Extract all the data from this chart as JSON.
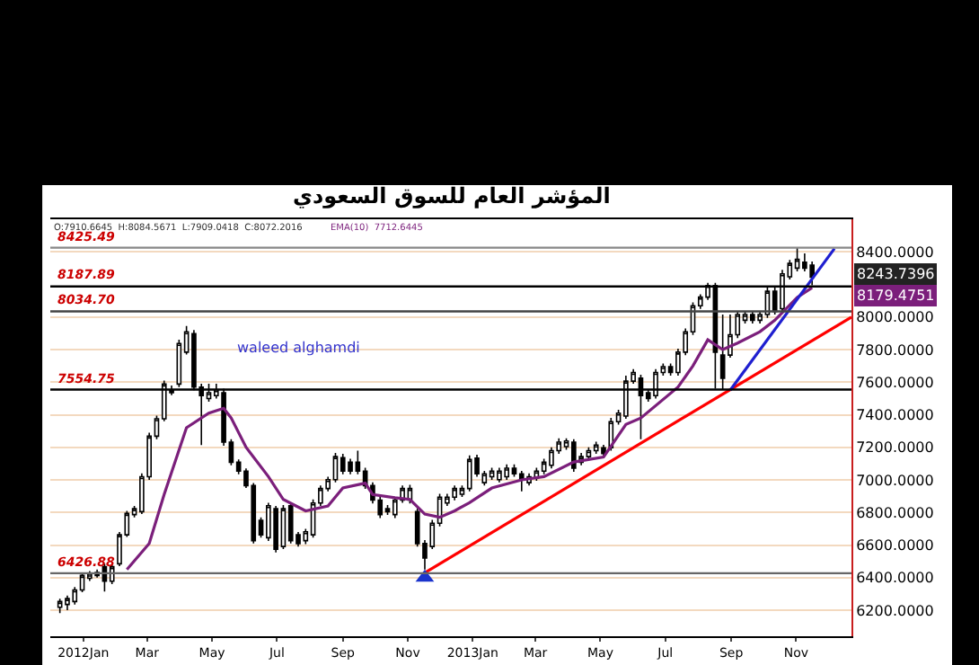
{
  "chart_data": {
    "type": "candlestick",
    "title": "المؤشر العام للسوق السعودي",
    "x": [
      "2011-12-10",
      "2011-12-17",
      "2011-12-24",
      "2011-12-31",
      "2012-01-07",
      "2012-01-14",
      "2012-01-21",
      "2012-01-28",
      "2012-02-04",
      "2012-02-11",
      "2012-02-18",
      "2012-02-25",
      "2012-03-03",
      "2012-03-10",
      "2012-03-17",
      "2012-03-24",
      "2012-03-31",
      "2012-04-07",
      "2012-04-14",
      "2012-04-21",
      "2012-04-28",
      "2012-05-05",
      "2012-05-12",
      "2012-05-19",
      "2012-05-26",
      "2012-06-02",
      "2012-06-09",
      "2012-06-16",
      "2012-06-23",
      "2012-06-30",
      "2012-07-07",
      "2012-07-14",
      "2012-07-21",
      "2012-07-28",
      "2012-08-04",
      "2012-08-11",
      "2012-08-18",
      "2012-08-25",
      "2012-09-01",
      "2012-09-08",
      "2012-09-15",
      "2012-09-22",
      "2012-09-29",
      "2012-10-06",
      "2012-10-13",
      "2012-10-20",
      "2012-10-27",
      "2012-11-03",
      "2012-11-10",
      "2012-11-17",
      "2012-11-24",
      "2012-12-01",
      "2012-12-08",
      "2012-12-15",
      "2012-12-22",
      "2012-12-29",
      "2013-01-05",
      "2013-01-12",
      "2013-01-19",
      "2013-01-26",
      "2013-02-02",
      "2013-02-09",
      "2013-02-16",
      "2013-02-23",
      "2013-03-02",
      "2013-03-09",
      "2013-03-16",
      "2013-03-23",
      "2013-03-30",
      "2013-04-06",
      "2013-04-13",
      "2013-04-20",
      "2013-04-27",
      "2013-05-04",
      "2013-05-11",
      "2013-05-18",
      "2013-05-25",
      "2013-06-01",
      "2013-06-08",
      "2013-06-15",
      "2013-06-22",
      "2013-06-29",
      "2013-07-06",
      "2013-07-13",
      "2013-07-20",
      "2013-07-27",
      "2013-08-03",
      "2013-08-10",
      "2013-08-17",
      "2013-08-24",
      "2013-08-31",
      "2013-09-07",
      "2013-09-14",
      "2013-09-21",
      "2013-09-28",
      "2013-10-05",
      "2013-10-12",
      "2013-10-19",
      "2013-10-26",
      "2013-11-02",
      "2013-11-09",
      "2013-11-16"
    ],
    "ohlc": [
      [
        6218,
        6271,
        6182,
        6253
      ],
      [
        6235,
        6289,
        6200,
        6271
      ],
      [
        6253,
        6342,
        6235,
        6324
      ],
      [
        6324,
        6430,
        6310,
        6413
      ],
      [
        6396,
        6440,
        6380,
        6421
      ],
      [
        6431,
        6450,
        6400,
        6413
      ],
      [
        6467,
        6485,
        6314,
        6378
      ],
      [
        6378,
        6480,
        6360,
        6467
      ],
      [
        6485,
        6680,
        6470,
        6663
      ],
      [
        6663,
        6810,
        6650,
        6794
      ],
      [
        6787,
        6840,
        6770,
        6823
      ],
      [
        6805,
        7040,
        6790,
        7019
      ],
      [
        7019,
        7290,
        7000,
        7268
      ],
      [
        7268,
        7395,
        7250,
        7375
      ],
      [
        7375,
        7610,
        7360,
        7588
      ],
      [
        7553,
        7580,
        7520,
        7535
      ],
      [
        7588,
        7860,
        7570,
        7837
      ],
      [
        7784,
        7945,
        7770,
        7909
      ],
      [
        7898,
        7920,
        7550,
        7570
      ],
      [
        7570,
        7590,
        7214,
        7517
      ],
      [
        7499,
        7590,
        7480,
        7535
      ],
      [
        7517,
        7590,
        7500,
        7553
      ],
      [
        7535,
        7560,
        7210,
        7232
      ],
      [
        7232,
        7250,
        7090,
        7108
      ],
      [
        7108,
        7125,
        7035,
        7054
      ],
      [
        7054,
        7070,
        6950,
        6965
      ],
      [
        6965,
        6980,
        6610,
        6627
      ],
      [
        6752,
        6770,
        6645,
        6663
      ],
      [
        6645,
        6860,
        6625,
        6841
      ],
      [
        6823,
        6840,
        6555,
        6574
      ],
      [
        6591,
        6845,
        6575,
        6823
      ],
      [
        6841,
        6860,
        6610,
        6627
      ],
      [
        6663,
        6680,
        6590,
        6609
      ],
      [
        6627,
        6700,
        6605,
        6681
      ],
      [
        6663,
        6880,
        6645,
        6858
      ],
      [
        6858,
        6965,
        6840,
        6947
      ],
      [
        6947,
        7020,
        6930,
        7001
      ],
      [
        7001,
        7165,
        6985,
        7143
      ],
      [
        7136,
        7160,
        7035,
        7054
      ],
      [
        7108,
        7130,
        7035,
        7054
      ],
      [
        7108,
        7179,
        7035,
        7054
      ],
      [
        7054,
        7075,
        6945,
        6965
      ],
      [
        6965,
        6985,
        6855,
        6876
      ],
      [
        6876,
        6900,
        6765,
        6787
      ],
      [
        6823,
        6845,
        6785,
        6805
      ],
      [
        6787,
        6895,
        6765,
        6876
      ],
      [
        6876,
        6965,
        6860,
        6947
      ],
      [
        6876,
        6970,
        6855,
        6947
      ],
      [
        6805,
        6825,
        6590,
        6609
      ],
      [
        6609,
        6630,
        6449,
        6520
      ],
      [
        6591,
        6755,
        6575,
        6734
      ],
      [
        6734,
        6915,
        6715,
        6894
      ],
      [
        6858,
        6915,
        6840,
        6894
      ],
      [
        6894,
        6965,
        6875,
        6947
      ],
      [
        6912,
        6965,
        6895,
        6947
      ],
      [
        6947,
        7150,
        6930,
        7125
      ],
      [
        7133,
        7155,
        7020,
        7037
      ],
      [
        6983,
        7055,
        6965,
        7037
      ],
      [
        7019,
        7075,
        7000,
        7054
      ],
      [
        7001,
        7075,
        6985,
        7054
      ],
      [
        7019,
        7095,
        7000,
        7072
      ],
      [
        7072,
        7095,
        7020,
        7037
      ],
      [
        7037,
        7055,
        6930,
        7001
      ],
      [
        6983,
        7040,
        6965,
        7019
      ],
      [
        7012,
        7075,
        6995,
        7054
      ],
      [
        7054,
        7130,
        7035,
        7108
      ],
      [
        7090,
        7200,
        7070,
        7179
      ],
      [
        7179,
        7255,
        7160,
        7232
      ],
      [
        7204,
        7255,
        7185,
        7239
      ],
      [
        7232,
        7250,
        7050,
        7072
      ],
      [
        7108,
        7165,
        7090,
        7143
      ],
      [
        7143,
        7200,
        7125,
        7179
      ],
      [
        7179,
        7235,
        7160,
        7214
      ],
      [
        7197,
        7215,
        7140,
        7161
      ],
      [
        7197,
        7380,
        7180,
        7357
      ],
      [
        7357,
        7430,
        7340,
        7410
      ],
      [
        7392,
        7640,
        7375,
        7606
      ],
      [
        7606,
        7680,
        7590,
        7659
      ],
      [
        7624,
        7645,
        7250,
        7517
      ],
      [
        7535,
        7555,
        7480,
        7499
      ],
      [
        7517,
        7680,
        7500,
        7659
      ],
      [
        7659,
        7715,
        7640,
        7695
      ],
      [
        7695,
        7715,
        7640,
        7659
      ],
      [
        7659,
        7805,
        7640,
        7784
      ],
      [
        7784,
        7930,
        7765,
        7909
      ],
      [
        7909,
        8090,
        7890,
        8069
      ],
      [
        8069,
        8140,
        8050,
        8122
      ],
      [
        8122,
        8210,
        8105,
        8193
      ],
      [
        8193,
        8210,
        7560,
        7784
      ],
      [
        7766,
        8015,
        7553,
        7624
      ],
      [
        7766,
        8015,
        7750,
        7891
      ],
      [
        7891,
        8035,
        7870,
        8015
      ],
      [
        7980,
        8035,
        7960,
        8015
      ],
      [
        8015,
        8035,
        7960,
        7980
      ],
      [
        7980,
        8035,
        7960,
        8015
      ],
      [
        8015,
        8180,
        7995,
        8158
      ],
      [
        8158,
        8180,
        8015,
        8033
      ],
      [
        8051,
        8290,
        8030,
        8265
      ],
      [
        8247,
        8350,
        8230,
        8329
      ],
      [
        8300,
        8425,
        8280,
        8354
      ],
      [
        8336,
        8390,
        8280,
        8300
      ],
      [
        8318,
        8340,
        8195,
        8244
      ]
    ],
    "series": [
      {
        "type": "line",
        "color": "#7b1f7b",
        "x": [
          "2012-02-11",
          "2012-03-03",
          "2012-03-17",
          "2012-04-07",
          "2012-04-28",
          "2012-05-12",
          "2012-05-19",
          "2012-06-02",
          "2012-06-23",
          "2012-07-07",
          "2012-07-28",
          "2012-08-18",
          "2012-09-01",
          "2012-09-22",
          "2012-09-29",
          "2012-10-20",
          "2012-11-03",
          "2012-11-17",
          "2012-12-01",
          "2012-12-15",
          "2012-12-29",
          "2013-01-19",
          "2013-02-16",
          "2013-03-09",
          "2013-04-06",
          "2013-05-04",
          "2013-05-25",
          "2013-06-08",
          "2013-07-13",
          "2013-07-27",
          "2013-08-10",
          "2013-08-24",
          "2013-09-07",
          "2013-09-28",
          "2013-10-12",
          "2013-11-02",
          "2013-11-16"
        ],
        "values": [
          6450,
          6610,
          6910,
          7320,
          7410,
          7440,
          7380,
          7200,
          7020,
          6880,
          6810,
          6840,
          6950,
          6980,
          6910,
          6890,
          6880,
          6790,
          6770,
          6810,
          6860,
          6950,
          7000,
          7020,
          7110,
          7140,
          7340,
          7380,
          7570,
          7700,
          7860,
          7800,
          7840,
          7910,
          7980,
          8120,
          8180
        ]
      },
      {
        "type": "line",
        "color": "#ff0000",
        "x": [
          "2012-11-17",
          "2013-12-23"
        ],
        "values": [
          6430,
          8000
        ]
      },
      {
        "type": "line",
        "color": "#1f1fd0",
        "x": [
          "2013-08-31",
          "2013-12-07"
        ],
        "values": [
          7550,
          8420
        ]
      },
      {
        "type": "scatter",
        "marker": "triangle",
        "color": "#1a33cc",
        "x": [
          "2012-11-17"
        ],
        "values": [
          6400
        ]
      }
    ],
    "xlim": [
      "2011-12-01",
      "2013-12-23"
    ],
    "xticks": [
      {
        "value": "2012-01-01",
        "label": "2012Jan"
      },
      {
        "value": "2012-03-01",
        "label": "Mar"
      },
      {
        "value": "2012-05-01",
        "label": "May"
      },
      {
        "value": "2012-07-01",
        "label": "Jul"
      },
      {
        "value": "2012-09-01",
        "label": "Sep"
      },
      {
        "value": "2012-11-01",
        "label": "Nov"
      },
      {
        "value": "2013-01-01",
        "label": "2013Jan"
      },
      {
        "value": "2013-03-01",
        "label": "Mar"
      },
      {
        "value": "2013-05-01",
        "label": "May"
      },
      {
        "value": "2013-07-01",
        "label": "Jul"
      },
      {
        "value": "2013-09-01",
        "label": "Sep"
      },
      {
        "value": "2013-11-01",
        "label": "Nov"
      }
    ],
    "ylim": [
      6040,
      8600
    ],
    "yticks": [
      {
        "value": 6200,
        "label": "6200.0000"
      },
      {
        "value": 6400,
        "label": "6400.0000"
      },
      {
        "value": 6600,
        "label": "6600.0000"
      },
      {
        "value": 6800,
        "label": "6800.0000"
      },
      {
        "value": 7000,
        "label": "7000.0000"
      },
      {
        "value": 7200,
        "label": "7200.0000"
      },
      {
        "value": 7400,
        "label": "7400.0000"
      },
      {
        "value": 7600,
        "label": "7600.0000"
      },
      {
        "value": 7800,
        "label": "7800.0000"
      },
      {
        "value": 8000,
        "label": "8000.0000"
      },
      {
        "value": 8400,
        "label": "8400.0000"
      }
    ],
    "grid": "y",
    "ref_lines": [
      {
        "axis": "y",
        "value": 8425.49,
        "label": "8425.49",
        "color": "#888888"
      },
      {
        "axis": "y",
        "value": 8187.89,
        "label": "8187.89",
        "color": "#000000"
      },
      {
        "axis": "y",
        "value": 8034.7,
        "label": "8034.70",
        "color": "#444444"
      },
      {
        "axis": "y",
        "value": 7554.75,
        "label": "7554.75",
        "color": "#000000"
      },
      {
        "axis": "y",
        "value": 6426.88,
        "label": "6426.88",
        "color": "#666666"
      }
    ],
    "annotations": [
      "O:7910.6645  H:8084.5671  L:7909.0418  C:8072.2016",
      "EMA(10)  7712.6445",
      "waleed alghamdi",
      "8243.7396",
      "8179.4751"
    ]
  }
}
